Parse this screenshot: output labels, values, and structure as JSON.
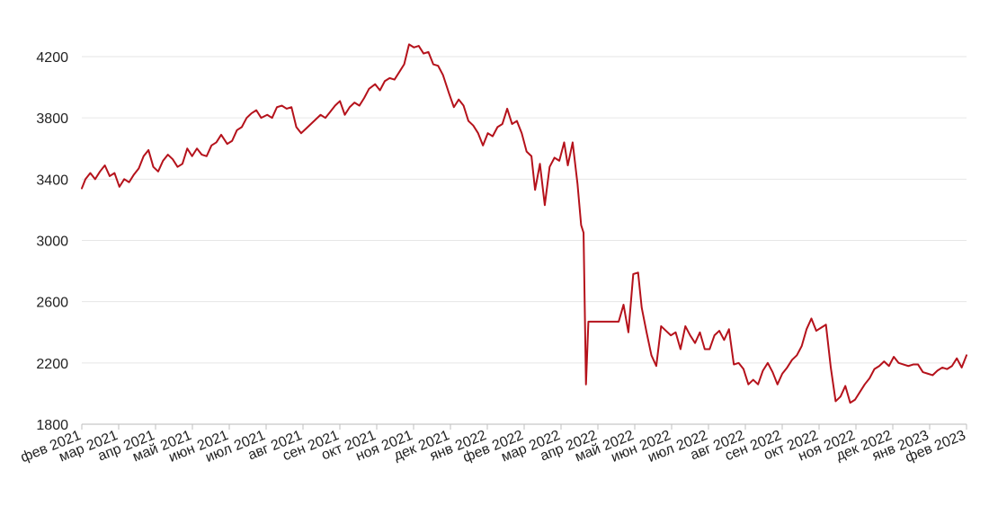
{
  "chart_data": {
    "type": "line",
    "title": "",
    "xlabel": "",
    "ylabel": "",
    "x_range": [
      "2021-02-01",
      "2023-02-01"
    ],
    "ylim": [
      1800,
      4300
    ],
    "y_ticks": [
      1800,
      2200,
      2600,
      3000,
      3400,
      3800,
      4200
    ],
    "x_tick_labels": [
      "фев 2021",
      "мар 2021",
      "апр 2021",
      "май 2021",
      "июн 2021",
      "июл 2021",
      "авг 2021",
      "сен 2021",
      "окт 2021",
      "ноя 2021",
      "дек 2021",
      "янв 2022",
      "фев 2022",
      "мар 2022",
      "апр 2022",
      "май 2022",
      "июн 2022",
      "июл 2022",
      "авг 2022",
      "сен 2022",
      "окт 2022",
      "ноя 2022",
      "дек 2022",
      "янв 2023",
      "фев 2023"
    ],
    "grid": true,
    "legend": "none",
    "series": [
      {
        "color": "#b5121b",
        "points": [
          [
            "2021-02-01",
            3340
          ],
          [
            "2021-02-04",
            3400
          ],
          [
            "2021-02-08",
            3440
          ],
          [
            "2021-02-12",
            3400
          ],
          [
            "2021-02-16",
            3450
          ],
          [
            "2021-02-20",
            3490
          ],
          [
            "2021-02-24",
            3420
          ],
          [
            "2021-02-28",
            3440
          ],
          [
            "2021-03-04",
            3350
          ],
          [
            "2021-03-08",
            3400
          ],
          [
            "2021-03-12",
            3380
          ],
          [
            "2021-03-16",
            3430
          ],
          [
            "2021-03-20",
            3470
          ],
          [
            "2021-03-24",
            3550
          ],
          [
            "2021-03-28",
            3590
          ],
          [
            "2021-04-01",
            3480
          ],
          [
            "2021-04-05",
            3450
          ],
          [
            "2021-04-09",
            3520
          ],
          [
            "2021-04-13",
            3560
          ],
          [
            "2021-04-17",
            3530
          ],
          [
            "2021-04-21",
            3480
          ],
          [
            "2021-04-25",
            3500
          ],
          [
            "2021-04-29",
            3600
          ],
          [
            "2021-05-03",
            3550
          ],
          [
            "2021-05-07",
            3600
          ],
          [
            "2021-05-11",
            3560
          ],
          [
            "2021-05-15",
            3550
          ],
          [
            "2021-05-19",
            3620
          ],
          [
            "2021-05-23",
            3640
          ],
          [
            "2021-05-27",
            3690
          ],
          [
            "2021-06-01",
            3630
          ],
          [
            "2021-06-05",
            3650
          ],
          [
            "2021-06-09",
            3720
          ],
          [
            "2021-06-13",
            3740
          ],
          [
            "2021-06-17",
            3800
          ],
          [
            "2021-06-21",
            3830
          ],
          [
            "2021-06-25",
            3850
          ],
          [
            "2021-06-29",
            3800
          ],
          [
            "2021-07-04",
            3820
          ],
          [
            "2021-07-08",
            3800
          ],
          [
            "2021-07-12",
            3870
          ],
          [
            "2021-07-16",
            3880
          ],
          [
            "2021-07-20",
            3860
          ],
          [
            "2021-07-24",
            3870
          ],
          [
            "2021-07-28",
            3740
          ],
          [
            "2021-08-01",
            3700
          ],
          [
            "2021-08-05",
            3730
          ],
          [
            "2021-08-09",
            3760
          ],
          [
            "2021-08-13",
            3790
          ],
          [
            "2021-08-17",
            3820
          ],
          [
            "2021-08-21",
            3800
          ],
          [
            "2021-08-25",
            3840
          ],
          [
            "2021-08-29",
            3880
          ],
          [
            "2021-09-02",
            3910
          ],
          [
            "2021-09-06",
            3820
          ],
          [
            "2021-09-10",
            3870
          ],
          [
            "2021-09-14",
            3900
          ],
          [
            "2021-09-18",
            3880
          ],
          [
            "2021-09-22",
            3930
          ],
          [
            "2021-09-26",
            3990
          ],
          [
            "2021-10-01",
            4020
          ],
          [
            "2021-10-05",
            3980
          ],
          [
            "2021-10-09",
            4040
          ],
          [
            "2021-10-13",
            4060
          ],
          [
            "2021-10-17",
            4050
          ],
          [
            "2021-10-21",
            4100
          ],
          [
            "2021-10-25",
            4150
          ],
          [
            "2021-10-29",
            4280
          ],
          [
            "2021-11-02",
            4260
          ],
          [
            "2021-11-06",
            4270
          ],
          [
            "2021-11-10",
            4220
          ],
          [
            "2021-11-14",
            4230
          ],
          [
            "2021-11-18",
            4150
          ],
          [
            "2021-11-22",
            4140
          ],
          [
            "2021-11-26",
            4080
          ],
          [
            "2021-12-01",
            3960
          ],
          [
            "2021-12-05",
            3870
          ],
          [
            "2021-12-09",
            3920
          ],
          [
            "2021-12-13",
            3880
          ],
          [
            "2021-12-17",
            3780
          ],
          [
            "2021-12-21",
            3750
          ],
          [
            "2021-12-25",
            3700
          ],
          [
            "2021-12-29",
            3620
          ],
          [
            "2022-01-02",
            3700
          ],
          [
            "2022-01-06",
            3680
          ],
          [
            "2022-01-10",
            3740
          ],
          [
            "2022-01-14",
            3760
          ],
          [
            "2022-01-18",
            3860
          ],
          [
            "2022-01-22",
            3760
          ],
          [
            "2022-01-26",
            3780
          ],
          [
            "2022-01-30",
            3700
          ],
          [
            "2022-02-03",
            3580
          ],
          [
            "2022-02-07",
            3550
          ],
          [
            "2022-02-10",
            3330
          ],
          [
            "2022-02-14",
            3500
          ],
          [
            "2022-02-18",
            3230
          ],
          [
            "2022-02-22",
            3480
          ],
          [
            "2022-02-26",
            3540
          ],
          [
            "2022-03-02",
            3520
          ],
          [
            "2022-03-06",
            3640
          ],
          [
            "2022-03-09",
            3490
          ],
          [
            "2022-03-13",
            3640
          ],
          [
            "2022-03-17",
            3370
          ],
          [
            "2022-03-20",
            3100
          ],
          [
            "2022-03-22",
            3050
          ],
          [
            "2022-03-24",
            2060
          ],
          [
            "2022-03-26",
            2470
          ],
          [
            "2022-04-03",
            2470
          ],
          [
            "2022-04-12",
            2470
          ],
          [
            "2022-04-20",
            2470
          ],
          [
            "2022-04-24",
            2580
          ],
          [
            "2022-04-28",
            2400
          ],
          [
            "2022-05-02",
            2780
          ],
          [
            "2022-05-06",
            2790
          ],
          [
            "2022-05-09",
            2560
          ],
          [
            "2022-05-13",
            2400
          ],
          [
            "2022-05-17",
            2250
          ],
          [
            "2022-05-21",
            2180
          ],
          [
            "2022-05-25",
            2440
          ],
          [
            "2022-05-29",
            2410
          ],
          [
            "2022-06-02",
            2380
          ],
          [
            "2022-06-06",
            2400
          ],
          [
            "2022-06-10",
            2290
          ],
          [
            "2022-06-14",
            2440
          ],
          [
            "2022-06-18",
            2380
          ],
          [
            "2022-06-22",
            2330
          ],
          [
            "2022-06-26",
            2400
          ],
          [
            "2022-06-30",
            2290
          ],
          [
            "2022-07-04",
            2290
          ],
          [
            "2022-07-08",
            2380
          ],
          [
            "2022-07-12",
            2410
          ],
          [
            "2022-07-16",
            2350
          ],
          [
            "2022-07-20",
            2420
          ],
          [
            "2022-07-24",
            2190
          ],
          [
            "2022-07-28",
            2200
          ],
          [
            "2022-08-01",
            2160
          ],
          [
            "2022-08-05",
            2060
          ],
          [
            "2022-08-09",
            2090
          ],
          [
            "2022-08-13",
            2060
          ],
          [
            "2022-08-17",
            2150
          ],
          [
            "2022-08-21",
            2200
          ],
          [
            "2022-08-25",
            2140
          ],
          [
            "2022-08-29",
            2060
          ],
          [
            "2022-09-02",
            2130
          ],
          [
            "2022-09-06",
            2170
          ],
          [
            "2022-09-10",
            2220
          ],
          [
            "2022-09-14",
            2250
          ],
          [
            "2022-09-18",
            2310
          ],
          [
            "2022-09-22",
            2420
          ],
          [
            "2022-09-26",
            2490
          ],
          [
            "2022-09-30",
            2410
          ],
          [
            "2022-10-04",
            2430
          ],
          [
            "2022-10-08",
            2450
          ],
          [
            "2022-10-12",
            2170
          ],
          [
            "2022-10-16",
            1950
          ],
          [
            "2022-10-20",
            1980
          ],
          [
            "2022-10-24",
            2050
          ],
          [
            "2022-10-28",
            1940
          ],
          [
            "2022-11-01",
            1960
          ],
          [
            "2022-11-05",
            2010
          ],
          [
            "2022-11-09",
            2060
          ],
          [
            "2022-11-13",
            2100
          ],
          [
            "2022-11-17",
            2160
          ],
          [
            "2022-11-21",
            2180
          ],
          [
            "2022-11-25",
            2210
          ],
          [
            "2022-11-29",
            2180
          ],
          [
            "2022-12-03",
            2240
          ],
          [
            "2022-12-07",
            2200
          ],
          [
            "2022-12-11",
            2190
          ],
          [
            "2022-12-15",
            2180
          ],
          [
            "2022-12-19",
            2190
          ],
          [
            "2022-12-23",
            2190
          ],
          [
            "2022-12-27",
            2140
          ],
          [
            "2022-12-31",
            2130
          ],
          [
            "2023-01-04",
            2120
          ],
          [
            "2023-01-08",
            2150
          ],
          [
            "2023-01-12",
            2170
          ],
          [
            "2023-01-16",
            2160
          ],
          [
            "2023-01-20",
            2180
          ],
          [
            "2023-01-24",
            2230
          ],
          [
            "2023-01-28",
            2170
          ],
          [
            "2023-02-01",
            2250
          ]
        ]
      }
    ]
  }
}
